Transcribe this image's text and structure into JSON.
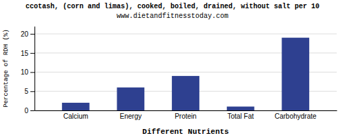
{
  "chart_data": {
    "type": "bar",
    "title": "ccotash, (corn and limas), cooked, boiled, drained, without salt per 10",
    "subtitle": "www.dietandfitnesstoday.com",
    "xlabel": "Different Nutrients",
    "ylabel": "Percentage of RDH (%)",
    "categories": [
      "Calcium",
      "Energy",
      "Protein",
      "Total Fat",
      "Carbohydrate"
    ],
    "values": [
      2,
      6,
      9,
      1,
      19
    ],
    "color": "#2e4090",
    "ylim": [
      0,
      22
    ],
    "yticks": [
      0,
      5,
      10,
      15,
      20
    ],
    "grid": true
  }
}
